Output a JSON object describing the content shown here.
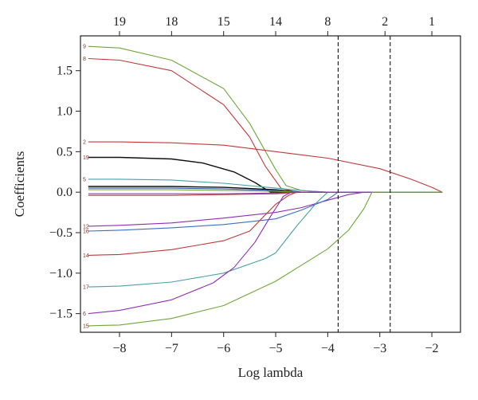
{
  "chart_data": {
    "type": "line",
    "title": "",
    "xlabel": "Log lambda",
    "ylabel": "Coefficients",
    "xlim": [
      -8.75,
      -1.45
    ],
    "ylim": [
      -1.73,
      1.93
    ],
    "x_ticks": [
      -8,
      -7,
      -6,
      -5,
      -4,
      -3,
      -2
    ],
    "x_tick_labels": [
      "−8",
      "−7",
      "−6",
      "−5",
      "−4",
      "−3",
      "−2"
    ],
    "y_ticks": [
      -1.5,
      -1.0,
      -0.5,
      0.0,
      0.5,
      1.0,
      1.5
    ],
    "y_tick_labels": [
      "−1.5",
      "−1.0",
      "−0.5",
      "0.0",
      "0.5",
      "1.0",
      "1.5"
    ],
    "top_axis": {
      "positions": [
        -8.0,
        -7.0,
        -6.0,
        -5.0,
        -4.0,
        -2.9,
        -2.0
      ],
      "labels": [
        "19",
        "18",
        "15",
        "14",
        "8",
        "2",
        "1"
      ]
    },
    "vlines": [
      -3.8,
      -2.8
    ],
    "grid": false,
    "legend": "none",
    "series": [
      {
        "label": "9",
        "color": "#6fa83a",
        "points": [
          [
            -8.6,
            1.8
          ],
          [
            -8,
            1.78
          ],
          [
            -7,
            1.63
          ],
          [
            -6,
            1.28
          ],
          [
            -5.5,
            0.85
          ],
          [
            -5,
            0.28
          ],
          [
            -4.8,
            0.08
          ],
          [
            -4.5,
            0.02
          ],
          [
            -4,
            0.0
          ],
          [
            -1.8,
            0.0
          ]
        ]
      },
      {
        "label": "8",
        "color": "#c0393b",
        "points": [
          [
            -8.6,
            1.65
          ],
          [
            -8,
            1.63
          ],
          [
            -7,
            1.5
          ],
          [
            -6,
            1.08
          ],
          [
            -5.5,
            0.68
          ],
          [
            -5.2,
            0.32
          ],
          [
            -4.9,
            0.05
          ],
          [
            -4.6,
            0.0
          ],
          [
            -1.8,
            0.0
          ]
        ]
      },
      {
        "label": "2",
        "color": "#c0393b",
        "points": [
          [
            -8.6,
            0.62
          ],
          [
            -8,
            0.62
          ],
          [
            -7,
            0.61
          ],
          [
            -6,
            0.58
          ],
          [
            -5,
            0.5
          ],
          [
            -4,
            0.42
          ],
          [
            -3,
            0.29
          ],
          [
            -2.4,
            0.16
          ],
          [
            -2,
            0.06
          ],
          [
            -1.8,
            0.0
          ]
        ]
      },
      {
        "label": "19",
        "color": "#111111",
        "points": [
          [
            -8.6,
            0.43
          ],
          [
            -8,
            0.43
          ],
          [
            -7,
            0.41
          ],
          [
            -6.4,
            0.36
          ],
          [
            -5.8,
            0.25
          ],
          [
            -5.4,
            0.12
          ],
          [
            -5.1,
            0.0
          ],
          [
            -1.8,
            0.0
          ]
        ]
      },
      {
        "label": "5",
        "color": "#4aa0a8",
        "points": [
          [
            -8.6,
            0.16
          ],
          [
            -8,
            0.16
          ],
          [
            -7,
            0.15
          ],
          [
            -6,
            0.11
          ],
          [
            -5,
            0.05
          ],
          [
            -4.5,
            0.02
          ],
          [
            -4,
            0.0
          ],
          [
            -1.8,
            0.0
          ]
        ]
      },
      {
        "label": "",
        "color": "#111111",
        "points": [
          [
            -8.6,
            0.07
          ],
          [
            -7,
            0.07
          ],
          [
            -6,
            0.06
          ],
          [
            -5,
            0.03
          ],
          [
            -4.5,
            0.0
          ],
          [
            -1.8,
            0.0
          ]
        ]
      },
      {
        "label": "",
        "color": "#3355aa",
        "points": [
          [
            -8.6,
            0.05
          ],
          [
            -7,
            0.05
          ],
          [
            -6,
            0.04
          ],
          [
            -5,
            0.02
          ],
          [
            -4.5,
            0.0
          ],
          [
            -1.8,
            0.0
          ]
        ]
      },
      {
        "label": "",
        "color": "#6fa83a",
        "points": [
          [
            -8.6,
            0.03
          ],
          [
            -7,
            0.03
          ],
          [
            -6,
            0.02
          ],
          [
            -5,
            0.01
          ],
          [
            -4.5,
            0.0
          ],
          [
            -1.8,
            0.0
          ]
        ]
      },
      {
        "label": "",
        "color": "#8844aa",
        "points": [
          [
            -8.6,
            -0.02
          ],
          [
            -7,
            -0.02
          ],
          [
            -6,
            -0.02
          ],
          [
            -5,
            -0.01
          ],
          [
            -4.5,
            0.0
          ],
          [
            -1.8,
            0.0
          ]
        ]
      },
      {
        "label": "",
        "color": "#c0393b",
        "points": [
          [
            -8.6,
            -0.04
          ],
          [
            -7,
            -0.04
          ],
          [
            -6,
            -0.03
          ],
          [
            -5,
            -0.02
          ],
          [
            -4.5,
            0.0
          ],
          [
            -1.8,
            0.0
          ]
        ]
      },
      {
        "label": "12",
        "color": "#8e2fb5",
        "points": [
          [
            -8.6,
            -0.42
          ],
          [
            -8,
            -0.41
          ],
          [
            -7,
            -0.38
          ],
          [
            -6,
            -0.32
          ],
          [
            -5,
            -0.25
          ],
          [
            -4.5,
            -0.19
          ],
          [
            -4,
            -0.1
          ],
          [
            -3.6,
            -0.03
          ],
          [
            -3.3,
            0.0
          ],
          [
            -1.8,
            0.0
          ]
        ]
      },
      {
        "label": "16",
        "color": "#3a6fc4",
        "points": [
          [
            -8.6,
            -0.48
          ],
          [
            -8,
            -0.47
          ],
          [
            -7,
            -0.44
          ],
          [
            -6,
            -0.4
          ],
          [
            -5,
            -0.33
          ],
          [
            -4.5,
            -0.22
          ],
          [
            -4,
            -0.09
          ],
          [
            -3.8,
            0.0
          ],
          [
            -1.8,
            0.0
          ]
        ]
      },
      {
        "label": "14",
        "color": "#c0393b",
        "points": [
          [
            -8.6,
            -0.78
          ],
          [
            -8,
            -0.77
          ],
          [
            -7,
            -0.71
          ],
          [
            -6,
            -0.6
          ],
          [
            -5.5,
            -0.48
          ],
          [
            -5.2,
            -0.28
          ],
          [
            -5,
            -0.15
          ],
          [
            -4.75,
            -0.04
          ],
          [
            -4.6,
            0.0
          ],
          [
            -1.8,
            0.0
          ]
        ]
      },
      {
        "label": "17",
        "color": "#4aa0a8",
        "points": [
          [
            -8.6,
            -1.17
          ],
          [
            -8,
            -1.16
          ],
          [
            -7,
            -1.11
          ],
          [
            -6,
            -1.0
          ],
          [
            -5.2,
            -0.82
          ],
          [
            -5,
            -0.75
          ],
          [
            -4.6,
            -0.42
          ],
          [
            -4.2,
            -0.12
          ],
          [
            -4,
            0.0
          ],
          [
            -1.8,
            0.0
          ]
        ]
      },
      {
        "label": "6",
        "color": "#8e2fb5",
        "points": [
          [
            -8.6,
            -1.5
          ],
          [
            -8,
            -1.46
          ],
          [
            -7,
            -1.33
          ],
          [
            -6.2,
            -1.12
          ],
          [
            -5.8,
            -0.93
          ],
          [
            -5.4,
            -0.62
          ],
          [
            -5.1,
            -0.3
          ],
          [
            -4.85,
            -0.05
          ],
          [
            -4.7,
            0.0
          ],
          [
            -1.8,
            0.0
          ]
        ]
      },
      {
        "label": "15",
        "color": "#6fa83a",
        "points": [
          [
            -8.6,
            -1.65
          ],
          [
            -8,
            -1.64
          ],
          [
            -7,
            -1.56
          ],
          [
            -6,
            -1.4
          ],
          [
            -5,
            -1.1
          ],
          [
            -4,
            -0.7
          ],
          [
            -3.6,
            -0.47
          ],
          [
            -3.3,
            -0.2
          ],
          [
            -3.15,
            0.0
          ],
          [
            -1.8,
            0.0
          ]
        ]
      }
    ]
  }
}
